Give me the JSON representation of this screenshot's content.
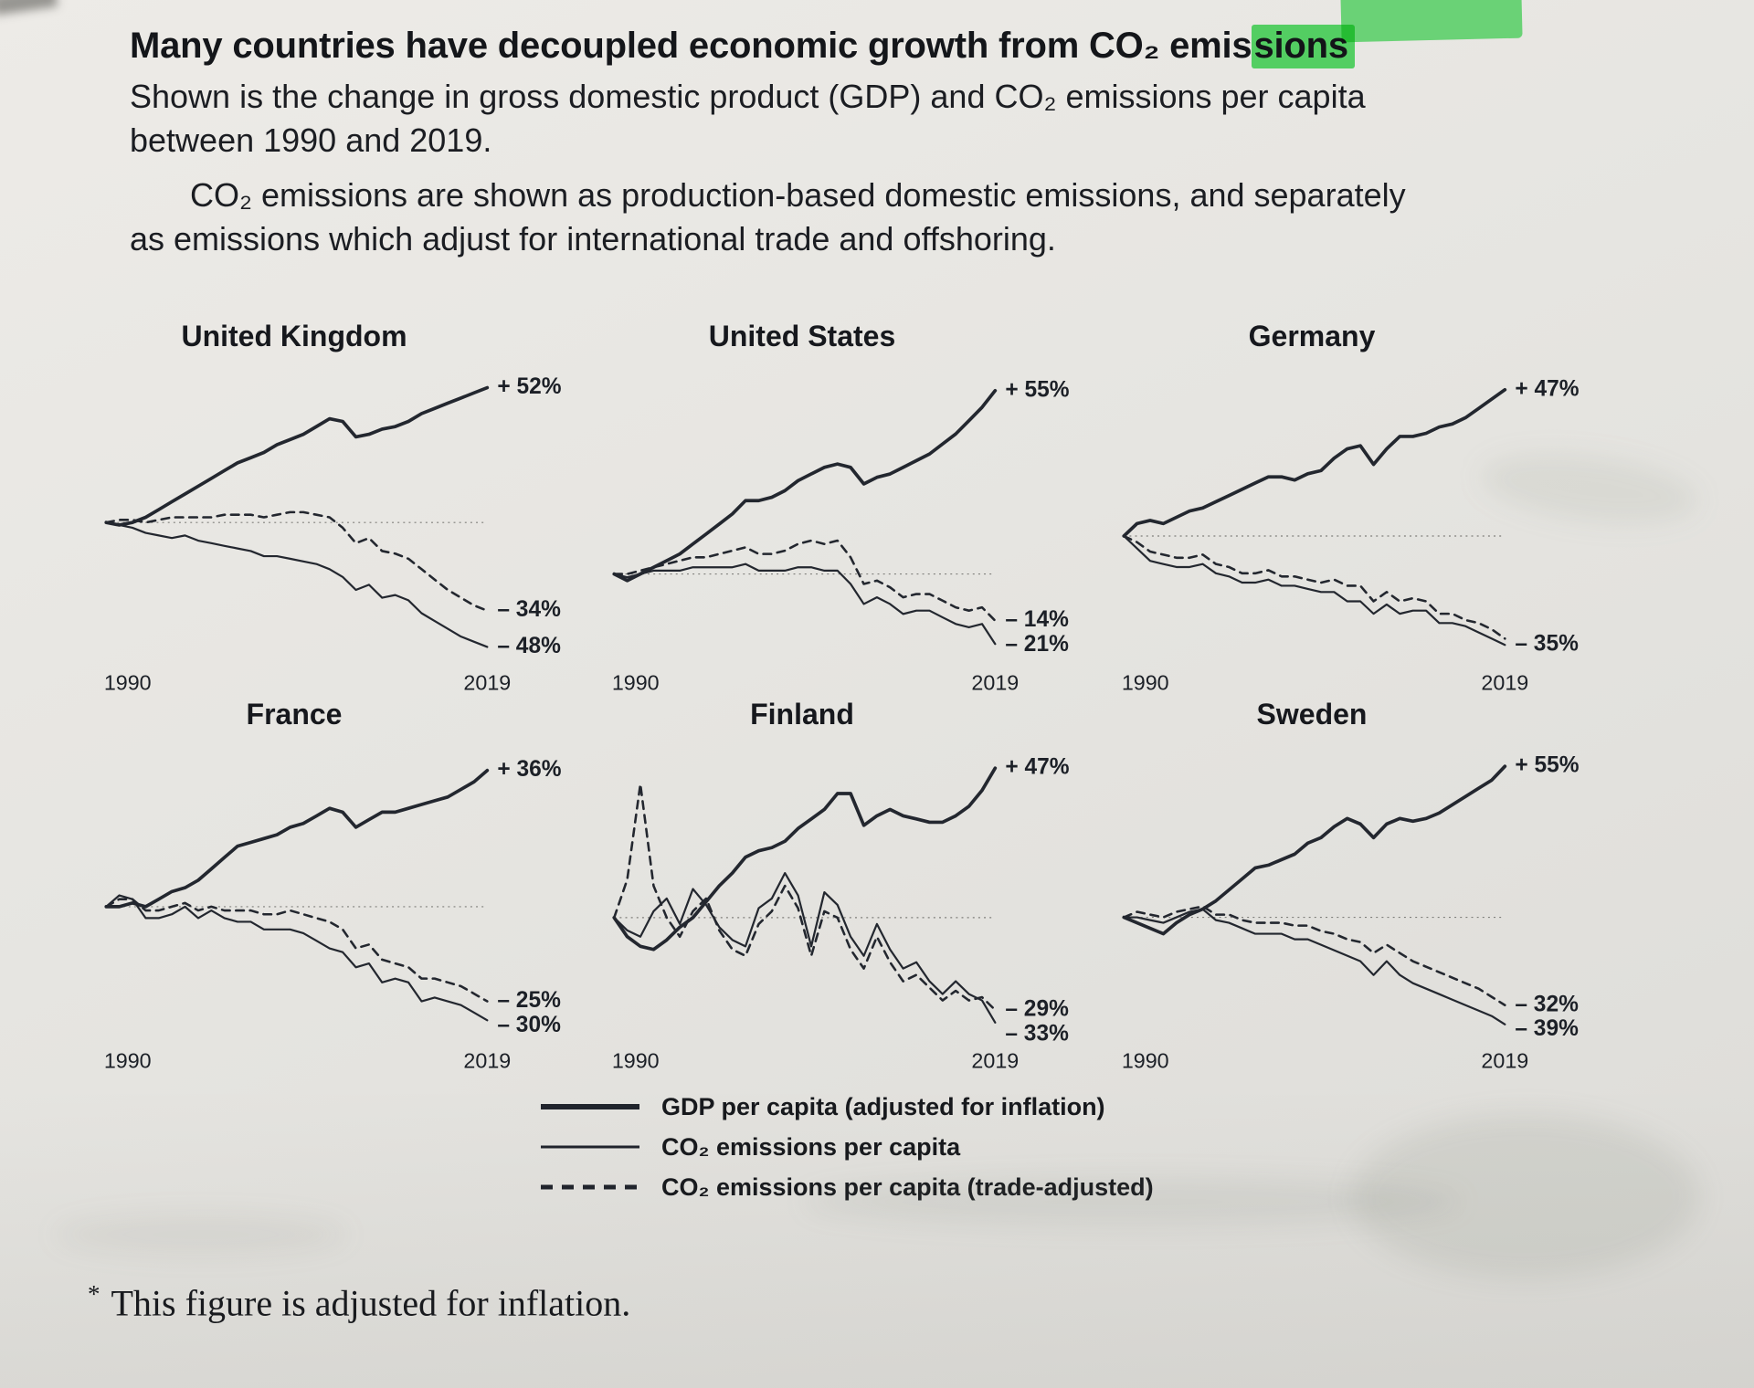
{
  "page": {
    "title_pre": "Many countries have decoupled economic growth from CO₂ emis",
    "title_highlight": "sions",
    "intro_1": "Shown is the change in gross domestic product (GDP) and CO₂ emissions per capita between 1990 and 2019.",
    "intro_2": "CO₂ emissions are shown as production-based domestic emissions, and separately as emissions which adjust for international trade and offshoring.",
    "footnote_marker": "*",
    "footnote_text": "This figure is adjusted for inflation.",
    "highlight_color": "#5be46e",
    "ink_color": "#20242c",
    "paper_color": "#e6e5e1"
  },
  "legend": {
    "items": [
      {
        "style": "solid-thick",
        "label": "GDP per capita (adjusted for inflation)"
      },
      {
        "style": "solid-thin",
        "label": "CO₂ emissions per capita"
      },
      {
        "style": "dashed",
        "label": "CO₂ emissions per capita (trade-adjusted)"
      }
    ]
  },
  "chart_data": [
    {
      "type": "line",
      "title": "United Kingdom",
      "baseline": 0,
      "x_range": {
        "start": 1990,
        "end": 2019,
        "step": 1
      },
      "x_label_start": "1990",
      "x_label_end": "2019",
      "series": [
        {
          "name": "GDP per capita (adjusted for inflation)",
          "style": "solid-thick",
          "end_label": "+ 52%",
          "values": [
            0,
            -1,
            0,
            2,
            5,
            8,
            11,
            14,
            17,
            20,
            23,
            25,
            27,
            30,
            32,
            34,
            37,
            40,
            39,
            33,
            34,
            36,
            37,
            39,
            42,
            44,
            46,
            48,
            50,
            52
          ]
        },
        {
          "name": "CO₂ emissions per capita",
          "style": "solid-thin",
          "end_label": "– 48%",
          "values": [
            0,
            -1,
            -2,
            -4,
            -5,
            -6,
            -5,
            -7,
            -8,
            -9,
            -10,
            -11,
            -13,
            -13,
            -14,
            -15,
            -16,
            -18,
            -21,
            -26,
            -24,
            -29,
            -28,
            -30,
            -35,
            -38,
            -41,
            -44,
            -46,
            -48
          ]
        },
        {
          "name": "CO₂ emissions per capita (trade-adjusted)",
          "style": "dashed",
          "end_label": "– 34%",
          "values": [
            0,
            1,
            1,
            0,
            1,
            2,
            2,
            2,
            2,
            3,
            3,
            3,
            2,
            3,
            4,
            4,
            3,
            2,
            -2,
            -8,
            -6,
            -11,
            -12,
            -14,
            -18,
            -22,
            -26,
            -29,
            -32,
            -34
          ]
        }
      ]
    },
    {
      "type": "line",
      "title": "United States",
      "baseline": 0,
      "x_range": {
        "start": 1990,
        "end": 2019,
        "step": 1
      },
      "x_label_start": "1990",
      "x_label_end": "2019",
      "series": [
        {
          "name": "GDP per capita (adjusted for inflation)",
          "style": "solid-thick",
          "end_label": "+ 55%",
          "values": [
            0,
            -2,
            0,
            2,
            4,
            6,
            9,
            12,
            15,
            18,
            22,
            22,
            23,
            25,
            28,
            30,
            32,
            33,
            32,
            27,
            29,
            30,
            32,
            34,
            36,
            39,
            42,
            46,
            50,
            55
          ]
        },
        {
          "name": "CO₂ emissions per capita",
          "style": "solid-thin",
          "end_label": "– 21%",
          "values": [
            0,
            -1,
            0,
            1,
            1,
            1,
            2,
            2,
            2,
            2,
            3,
            1,
            1,
            1,
            2,
            2,
            1,
            1,
            -3,
            -9,
            -7,
            -9,
            -12,
            -11,
            -11,
            -13,
            -15,
            -16,
            -15,
            -21
          ]
        },
        {
          "name": "CO₂ emissions per capita (trade-adjusted)",
          "style": "dashed",
          "end_label": "– 14%",
          "values": [
            0,
            0,
            1,
            2,
            3,
            4,
            5,
            5,
            6,
            7,
            8,
            6,
            6,
            7,
            9,
            10,
            9,
            10,
            5,
            -3,
            -2,
            -4,
            -7,
            -6,
            -6,
            -8,
            -10,
            -11,
            -10,
            -14
          ]
        }
      ]
    },
    {
      "type": "line",
      "title": "Germany",
      "baseline": 0,
      "x_range": {
        "start": 1990,
        "end": 2019,
        "step": 1
      },
      "x_label_start": "1990",
      "x_label_end": "2019",
      "series": [
        {
          "name": "GDP per capita (adjusted for inflation)",
          "style": "solid-thick",
          "end_label": "+ 47%",
          "values": [
            0,
            4,
            5,
            4,
            6,
            8,
            9,
            11,
            13,
            15,
            17,
            19,
            19,
            18,
            20,
            21,
            25,
            28,
            29,
            23,
            28,
            32,
            32,
            33,
            35,
            36,
            38,
            41,
            44,
            47
          ]
        },
        {
          "name": "CO₂ emissions per capita",
          "style": "solid-thin",
          "end_label": "– 35%",
          "values": [
            0,
            -4,
            -8,
            -9,
            -10,
            -10,
            -9,
            -12,
            -13,
            -15,
            -15,
            -14,
            -16,
            -16,
            -17,
            -18,
            -18,
            -21,
            -21,
            -25,
            -22,
            -25,
            -24,
            -24,
            -28,
            -28,
            -29,
            -31,
            -33,
            -35
          ]
        },
        {
          "name": "CO₂ emissions per capita (trade-adjusted)",
          "style": "dashed",
          "end_label": "",
          "values": [
            0,
            -2,
            -5,
            -6,
            -7,
            -7,
            -6,
            -9,
            -10,
            -12,
            -12,
            -11,
            -13,
            -13,
            -14,
            -15,
            -14,
            -16,
            -16,
            -21,
            -18,
            -21,
            -20,
            -21,
            -25,
            -25,
            -27,
            -28,
            -30,
            -33
          ]
        }
      ]
    },
    {
      "type": "line",
      "title": "France",
      "baseline": 0,
      "x_range": {
        "start": 1990,
        "end": 2019,
        "step": 1
      },
      "x_label_start": "1990",
      "x_label_end": "2019",
      "series": [
        {
          "name": "GDP per capita (adjusted for inflation)",
          "style": "solid-thick",
          "end_label": "+ 36%",
          "values": [
            0,
            0,
            1,
            0,
            2,
            4,
            5,
            7,
            10,
            13,
            16,
            17,
            18,
            19,
            21,
            22,
            24,
            26,
            25,
            21,
            23,
            25,
            25,
            26,
            27,
            28,
            29,
            31,
            33,
            36
          ]
        },
        {
          "name": "CO₂ emissions per capita",
          "style": "solid-thin",
          "end_label": "– 30%",
          "values": [
            0,
            3,
            2,
            -3,
            -3,
            -2,
            0,
            -3,
            -1,
            -3,
            -4,
            -4,
            -6,
            -6,
            -6,
            -7,
            -9,
            -11,
            -12,
            -16,
            -15,
            -20,
            -19,
            -20,
            -25,
            -24,
            -25,
            -26,
            -28,
            -30
          ]
        },
        {
          "name": "CO₂ emissions per capita (trade-adjusted)",
          "style": "dashed",
          "end_label": "– 25%",
          "values": [
            0,
            2,
            2,
            -1,
            -1,
            0,
            1,
            -1,
            0,
            -1,
            -1,
            -1,
            -2,
            -2,
            -1,
            -2,
            -3,
            -4,
            -6,
            -11,
            -10,
            -14,
            -15,
            -16,
            -19,
            -19,
            -20,
            -21,
            -23,
            -25
          ]
        }
      ]
    },
    {
      "type": "line",
      "title": "Finland",
      "baseline": 0,
      "x_range": {
        "start": 1990,
        "end": 2019,
        "step": 1
      },
      "x_label_start": "1990",
      "x_label_end": "2019",
      "series": [
        {
          "name": "GDP per capita (adjusted for inflation)",
          "style": "solid-thick",
          "end_label": "+ 47%",
          "values": [
            0,
            -6,
            -9,
            -10,
            -7,
            -3,
            0,
            5,
            10,
            14,
            19,
            21,
            22,
            24,
            28,
            31,
            34,
            39,
            39,
            29,
            32,
            34,
            32,
            31,
            30,
            30,
            32,
            35,
            40,
            47
          ]
        },
        {
          "name": "CO₂ emissions per capita",
          "style": "solid-thin",
          "end_label": "– 33%",
          "values": [
            0,
            -4,
            -6,
            2,
            6,
            -2,
            9,
            4,
            -3,
            -7,
            -9,
            3,
            6,
            14,
            7,
            -9,
            8,
            4,
            -6,
            -12,
            -2,
            -10,
            -16,
            -14,
            -20,
            -24,
            -20,
            -24,
            -26,
            -33
          ]
        },
        {
          "name": "CO₂ emissions per capita (trade-adjusted)",
          "style": "dashed",
          "end_label": "– 29%",
          "values": [
            0,
            12,
            42,
            10,
            0,
            -6,
            2,
            6,
            -4,
            -10,
            -12,
            -2,
            2,
            10,
            3,
            -12,
            2,
            0,
            -10,
            -16,
            -6,
            -14,
            -20,
            -18,
            -22,
            -26,
            -23,
            -26,
            -25,
            -29
          ]
        }
      ]
    },
    {
      "type": "line",
      "title": "Sweden",
      "baseline": 0,
      "x_range": {
        "start": 1990,
        "end": 2019,
        "step": 1
      },
      "x_label_start": "1990",
      "x_label_end": "2019",
      "series": [
        {
          "name": "GDP per capita (adjusted for inflation)",
          "style": "solid-thick",
          "end_label": "+ 55%",
          "values": [
            0,
            -2,
            -4,
            -6,
            -2,
            1,
            3,
            6,
            10,
            14,
            18,
            19,
            21,
            23,
            27,
            29,
            33,
            36,
            34,
            29,
            34,
            36,
            35,
            36,
            38,
            41,
            44,
            47,
            50,
            55
          ]
        },
        {
          "name": "CO₂ emissions per capita",
          "style": "solid-thin",
          "end_label": "– 39%",
          "values": [
            0,
            0,
            -1,
            -2,
            0,
            2,
            3,
            -1,
            -2,
            -4,
            -6,
            -6,
            -6,
            -8,
            -8,
            -10,
            -12,
            -14,
            -16,
            -21,
            -16,
            -21,
            -24,
            -26,
            -28,
            -30,
            -32,
            -34,
            -36,
            -39
          ]
        },
        {
          "name": "CO₂ emissions per capita (trade-adjusted)",
          "style": "dashed",
          "end_label": "– 32%",
          "values": [
            0,
            2,
            1,
            0,
            2,
            3,
            4,
            1,
            1,
            -1,
            -2,
            -2,
            -2,
            -3,
            -3,
            -5,
            -6,
            -8,
            -9,
            -13,
            -10,
            -13,
            -16,
            -18,
            -20,
            -22,
            -24,
            -26,
            -29,
            -32
          ]
        }
      ]
    }
  ]
}
